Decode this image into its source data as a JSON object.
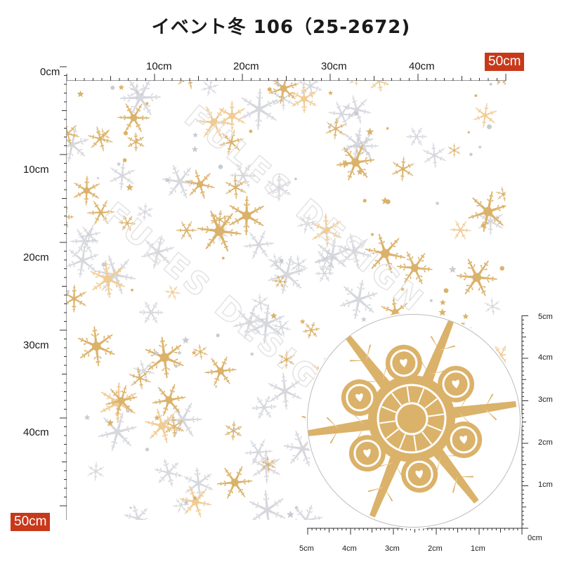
{
  "title": "イベント冬 106（25-2672)",
  "ruler": {
    "top_labels": [
      "0cm",
      "10cm",
      "20cm",
      "30cm",
      "40cm"
    ],
    "left_labels": [
      "10cm",
      "20cm",
      "30cm",
      "40cm"
    ],
    "badge_top": "50cm",
    "badge_left": "50cm",
    "unit": "cm"
  },
  "zoom_scale": {
    "bottom_labels": [
      "5cm",
      "4cm",
      "3cm",
      "2cm",
      "1cm",
      "0cm"
    ],
    "right_labels": [
      "5cm",
      "4cm",
      "3cm",
      "2cm",
      "1cm"
    ]
  },
  "watermark": "FULES DESIGN",
  "colors": {
    "gold": "#dbb26a",
    "gold_light": "#f0cc95",
    "silver": "#c9cbd2",
    "badge": "#c8381a"
  }
}
